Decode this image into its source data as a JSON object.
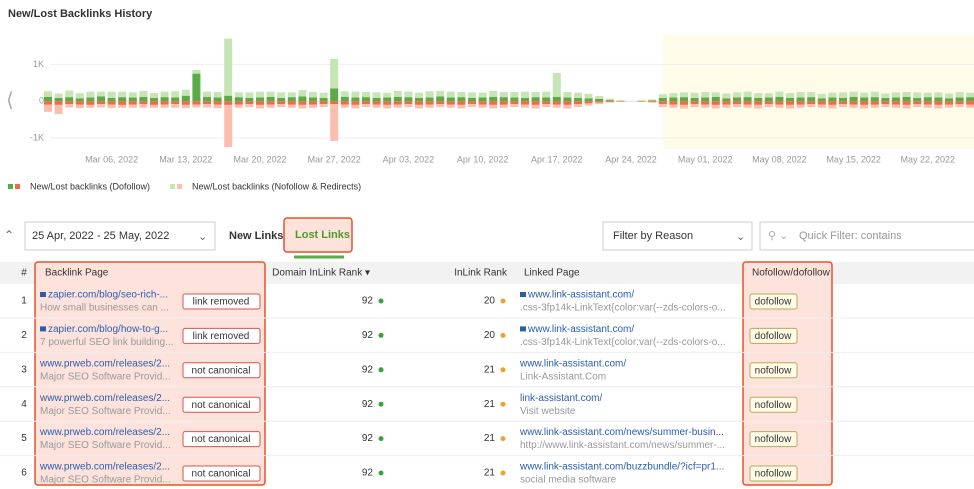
{
  "header": {
    "title": "New/Lost Backlinks History"
  },
  "chart_data": {
    "type": "bar",
    "stacked": true,
    "categories": [
      null,
      null,
      null,
      null,
      null,
      null,
      "Mar 06, 2022",
      null,
      null,
      null,
      null,
      null,
      null,
      "Mar 13, 2022",
      null,
      null,
      null,
      null,
      null,
      null,
      "Mar 20, 2022",
      null,
      null,
      null,
      null,
      null,
      null,
      "Mar 27, 2022",
      null,
      null,
      null,
      null,
      null,
      null,
      "Apr 03, 2022",
      null,
      null,
      null,
      null,
      null,
      null,
      "Apr 10, 2022",
      null,
      null,
      null,
      null,
      null,
      null,
      "Apr 17, 2022",
      null,
      null,
      null,
      null,
      null,
      null,
      "Apr 24, 2022",
      null,
      null,
      null,
      null,
      null,
      null,
      "May 01, 2022",
      null,
      null,
      null,
      null,
      null,
      null,
      "May 08, 2022",
      null,
      null,
      null,
      null,
      null,
      null,
      "May 15, 2022",
      null,
      null,
      null,
      null,
      null,
      null,
      "May 22, 2022",
      null,
      null,
      null,
      null
    ],
    "series": [
      {
        "name": "New/Lost backlinks (Dofollow)",
        "colors": [
          "#5aaa46",
          "#f06a47"
        ],
        "new": [
          120,
          90,
          110,
          80,
          100,
          130,
          90,
          110,
          100,
          120,
          90,
          110,
          100,
          150,
          750,
          120,
          100,
          150,
          110,
          90,
          100,
          120,
          90,
          110,
          130,
          100,
          90,
          350,
          120,
          100,
          110,
          90,
          100,
          120,
          110,
          90,
          100,
          130,
          100,
          110,
          90,
          100,
          120,
          110,
          100,
          90,
          110,
          100,
          120,
          100,
          90,
          80,
          60,
          30,
          10,
          0,
          10,
          20,
          90,
          100,
          110,
          90,
          100,
          120,
          80,
          100,
          110,
          90,
          100,
          120,
          90,
          100,
          110,
          80,
          100,
          90,
          120,
          100,
          110,
          90,
          100,
          120,
          90,
          110,
          100,
          80,
          100,
          110
        ],
        "lost": [
          -90,
          -100,
          -80,
          -90,
          -100,
          -80,
          -90,
          -100,
          -90,
          -80,
          -100,
          -90,
          -80,
          -100,
          -90,
          -80,
          -90,
          -100,
          -90,
          -80,
          -100,
          -90,
          -80,
          -90,
          -100,
          -90,
          -80,
          -80,
          -90,
          -100,
          -80,
          -90,
          -100,
          -90,
          -80,
          -100,
          -90,
          -80,
          -90,
          -100,
          -80,
          -90,
          -100,
          -90,
          -80,
          -90,
          -100,
          -80,
          -90,
          -100,
          -80,
          -60,
          -40,
          -20,
          -10,
          0,
          -10,
          -20,
          -80,
          -90,
          -100,
          -80,
          -90,
          -100,
          -90,
          -80,
          -90,
          -100,
          -80,
          -90,
          -100,
          -90,
          -80,
          -90,
          -100,
          -80,
          -90,
          -100,
          -90,
          -80,
          -90,
          -100,
          -80,
          -90,
          -100,
          -90,
          -80,
          -90
        ]
      },
      {
        "name": "New/Lost backlinks (Nofollow & Redirects)",
        "colors": [
          "#c6e5b5",
          "#fcbfae"
        ],
        "new": [
          150,
          120,
          180,
          140,
          160,
          130,
          170,
          150,
          140,
          160,
          130,
          150,
          170,
          160,
          100,
          140,
          150,
          1550,
          130,
          150,
          160,
          140,
          150,
          130,
          170,
          150,
          140,
          800,
          150,
          160,
          140,
          150,
          130,
          160,
          150,
          140,
          170,
          150,
          160,
          140,
          150,
          130,
          160,
          140,
          150,
          170,
          140,
          160,
          650,
          150,
          140,
          120,
          80,
          40,
          20,
          0,
          20,
          30,
          100,
          120,
          130,
          140,
          150,
          120,
          130,
          140,
          150,
          130,
          120,
          140,
          130,
          150,
          140,
          120,
          130,
          150,
          140,
          130,
          150,
          120,
          140,
          130,
          150,
          120,
          140,
          130,
          150,
          120
        ],
        "lost": [
          -200,
          -250,
          -90,
          -100,
          -80,
          -90,
          -100,
          -80,
          -90,
          -100,
          -80,
          -90,
          -100,
          -90,
          -80,
          -90,
          -100,
          -1150,
          -90,
          -80,
          -100,
          -90,
          -80,
          -90,
          -100,
          -90,
          -80,
          -1000,
          -90,
          -100,
          -80,
          -90,
          -100,
          -90,
          -80,
          -100,
          -90,
          -80,
          -90,
          -100,
          -80,
          -90,
          -100,
          -90,
          -80,
          -90,
          -100,
          -80,
          -90,
          -100,
          -80,
          -60,
          -40,
          -20,
          -10,
          0,
          -10,
          -20,
          -80,
          -90,
          -100,
          -80,
          -90,
          -100,
          -90,
          -80,
          -90,
          -100,
          -80,
          -90,
          -100,
          -90,
          -80,
          -90,
          -100,
          -80,
          -90,
          -100,
          -90,
          -80,
          -90,
          -100,
          -80,
          -90,
          -100,
          -90,
          -80,
          -90
        ]
      }
    ],
    "ylim": [
      -1300,
      1800
    ],
    "yticks": [
      {
        "value": 1000,
        "label": "1K"
      },
      0,
      {
        "value": -1000,
        "label": "-1K"
      }
    ],
    "grid": true
  },
  "controls": {
    "date_range": "25 Apr, 2022 - 25 May, 2022",
    "tabs": [
      "New Links",
      "Lost Links"
    ],
    "active_tab": 1,
    "filter": "Filter by Reason",
    "search_placeholder": "Quick Filter: contains"
  },
  "table": {
    "columns": [
      "#",
      "Backlink Page",
      "Domain InLink Rank ▾",
      "InLink Rank",
      "Linked Page",
      "Nofollow/dofollow"
    ],
    "rank_colors": [
      "#3aa535",
      "#f0a030"
    ],
    "rows": [
      {
        "n": 1,
        "url": "zapier.com/blog/seo-rich-...",
        "desc": "How small businesses can ...",
        "reason": "link removed",
        "domain_rank": 92,
        "inlink_rank": 20,
        "linked_url": "www.link-assistant.com/",
        "linked_desc": ".css-3fp14k-LinkText{color:var(--zds-colors-o...",
        "follow": "dofollow",
        "secure": true
      },
      {
        "n": 2,
        "url": "zapier.com/blog/how-to-g...",
        "desc": "7 powerful SEO link building...",
        "reason": "link removed",
        "domain_rank": 92,
        "inlink_rank": 20,
        "linked_url": "www.link-assistant.com/",
        "linked_desc": ".css-3fp14k-LinkText{color:var(--zds-colors-o...",
        "follow": "dofollow",
        "secure": true
      },
      {
        "n": 3,
        "url": "www.prweb.com/releases/2...",
        "desc": "Major SEO Software Provid...",
        "reason": "not canonical",
        "domain_rank": 92,
        "inlink_rank": 21,
        "linked_url": "www.link-assistant.com/",
        "linked_desc": "Link-Assistant.Com",
        "follow": "nofollow",
        "secure": false
      },
      {
        "n": 4,
        "url": "www.prweb.com/releases/2...",
        "desc": "Major SEO Software Provid...",
        "reason": "not canonical",
        "domain_rank": 92,
        "inlink_rank": 21,
        "linked_url": "link-assistant.com/",
        "linked_desc": "Visit website",
        "follow": "nofollow",
        "secure": false
      },
      {
        "n": 5,
        "url": "www.prweb.com/releases/2...",
        "desc": "Major SEO Software Provid...",
        "reason": "not canonical",
        "domain_rank": 92,
        "inlink_rank": 21,
        "linked_url": "www.link-assistant.com/news/summer-busin...",
        "linked_desc": "http://www.link-assistant.com/news/summer-...",
        "follow": "nofollow",
        "secure": false
      },
      {
        "n": 6,
        "url": "www.prweb.com/releases/2...",
        "desc": "Major SEO Software Provid...",
        "reason": "not canonical",
        "domain_rank": 92,
        "inlink_rank": 21,
        "linked_url": "www.link-assistant.com/buzzbundle/?icf=pr1...",
        "linked_desc": "social media software",
        "follow": "nofollow",
        "secure": false
      }
    ]
  }
}
